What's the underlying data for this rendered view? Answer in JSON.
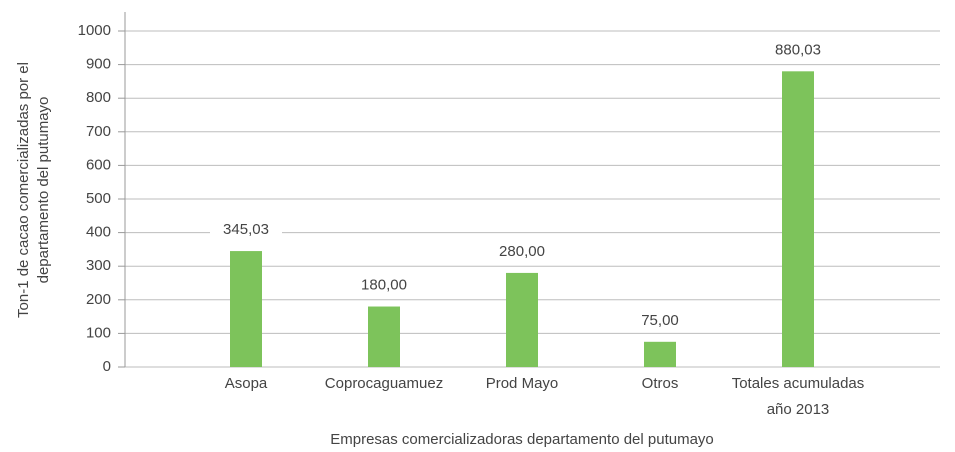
{
  "chart_data": {
    "type": "bar",
    "x_label": "Empresas comercializadoras departamento del putumayo",
    "y_label": "Ton-1 de cacao comercializadas por el\ndepartamento del putumayo",
    "categories": [
      "Asopa",
      "Coprocaguamuez",
      "Prod Mayo",
      "Otros",
      "Totales acumuladas\naño 2013"
    ],
    "values": [
      345.03,
      180,
      280,
      75,
      880.03
    ],
    "value_labels": [
      "345,03",
      "180,00",
      "280,00",
      "75,00",
      "880,03"
    ],
    "color": "#7dc35b",
    "ylim": [
      0,
      1000
    ],
    "yticks": [
      0,
      100,
      200,
      300,
      400,
      500,
      600,
      700,
      800,
      900,
      1000
    ],
    "grid": true
  }
}
